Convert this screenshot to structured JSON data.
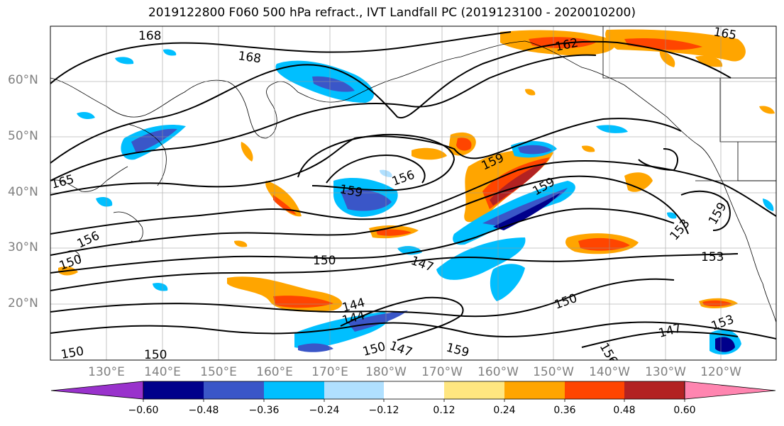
{
  "title": "2019122800 F060 500 hPa refract., IVT Landfall PC (2019123100 - 2020010200)",
  "lat_labels": [
    "60°N",
    "50°N",
    "40°N",
    "30°N",
    "20°N"
  ],
  "lon_labels": [
    "130°E",
    "140°E",
    "150°E",
    "160°E",
    "170°E",
    "180°W",
    "170°W",
    "160°W",
    "150°W",
    "140°W",
    "130°W",
    "120°W"
  ],
  "contour_labels": [
    "168",
    "168",
    "162",
    "165",
    "165",
    "159",
    "156",
    "159",
    "159",
    "156",
    "153",
    "159",
    "153",
    "150",
    "147",
    "150",
    "144",
    "144",
    "150",
    "147",
    "150",
    "147",
    "153",
    "150",
    "159",
    "156",
    "150"
  ],
  "colorbar": {
    "ticks": [
      "−0.60",
      "−0.48",
      "−0.36",
      "−0.24",
      "−0.12",
      "0.12",
      "0.24",
      "0.36",
      "0.48",
      "0.60"
    ],
    "colors": [
      "#9932cc",
      "#00008b",
      "#3a56c8",
      "#00bfff",
      "#b0e0ff",
      "#ffffff",
      "#ffe680",
      "#ffa500",
      "#ff4500",
      "#b22222",
      "#ff85b0"
    ]
  }
}
